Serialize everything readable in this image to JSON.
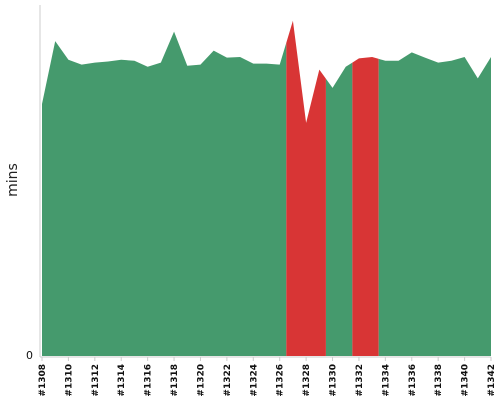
{
  "chart_data": {
    "type": "area",
    "xlabel": "",
    "ylabel": "mins",
    "y_tick_labels": [
      "0"
    ],
    "x_tick_labels": [
      "#1308",
      "#1310",
      "#1312",
      "#1314",
      "#1316",
      "#1318",
      "#1320",
      "#1322",
      "#1324",
      "#1326",
      "#1328",
      "#1330",
      "#1332",
      "#1334",
      "#1336",
      "#1338",
      "#1340",
      "#1342"
    ],
    "ylim": [
      0,
      100
    ],
    "grid": false,
    "legend": "none",
    "colors": {
      "ok": "#459a6d",
      "failed": "#d83535",
      "axis": "#cccccc"
    },
    "x": [
      1308,
      1309,
      1310,
      1311,
      1312,
      1313,
      1314,
      1315,
      1316,
      1317,
      1318,
      1319,
      1320,
      1321,
      1322,
      1323,
      1324,
      1325,
      1326,
      1327,
      1328,
      1329,
      1330,
      1331,
      1332,
      1333,
      1334,
      1335,
      1336,
      1337,
      1338,
      1339,
      1340,
      1341,
      1342
    ],
    "values": [
      71.8,
      89.7,
      84.4,
      83.0,
      83.6,
      83.9,
      84.4,
      84.1,
      82.4,
      83.6,
      92.4,
      82.7,
      83.0,
      87.0,
      85.0,
      85.2,
      83.3,
      83.3,
      83.0,
      95.5,
      66.4,
      81.6,
      76.4,
      82.4,
      84.8,
      85.2,
      84.1,
      84.1,
      86.5,
      85.0,
      83.6,
      84.1,
      85.2,
      79.1,
      85.2
    ],
    "failed_builds": [
      1327,
      1328,
      1329,
      1332,
      1333
    ]
  }
}
